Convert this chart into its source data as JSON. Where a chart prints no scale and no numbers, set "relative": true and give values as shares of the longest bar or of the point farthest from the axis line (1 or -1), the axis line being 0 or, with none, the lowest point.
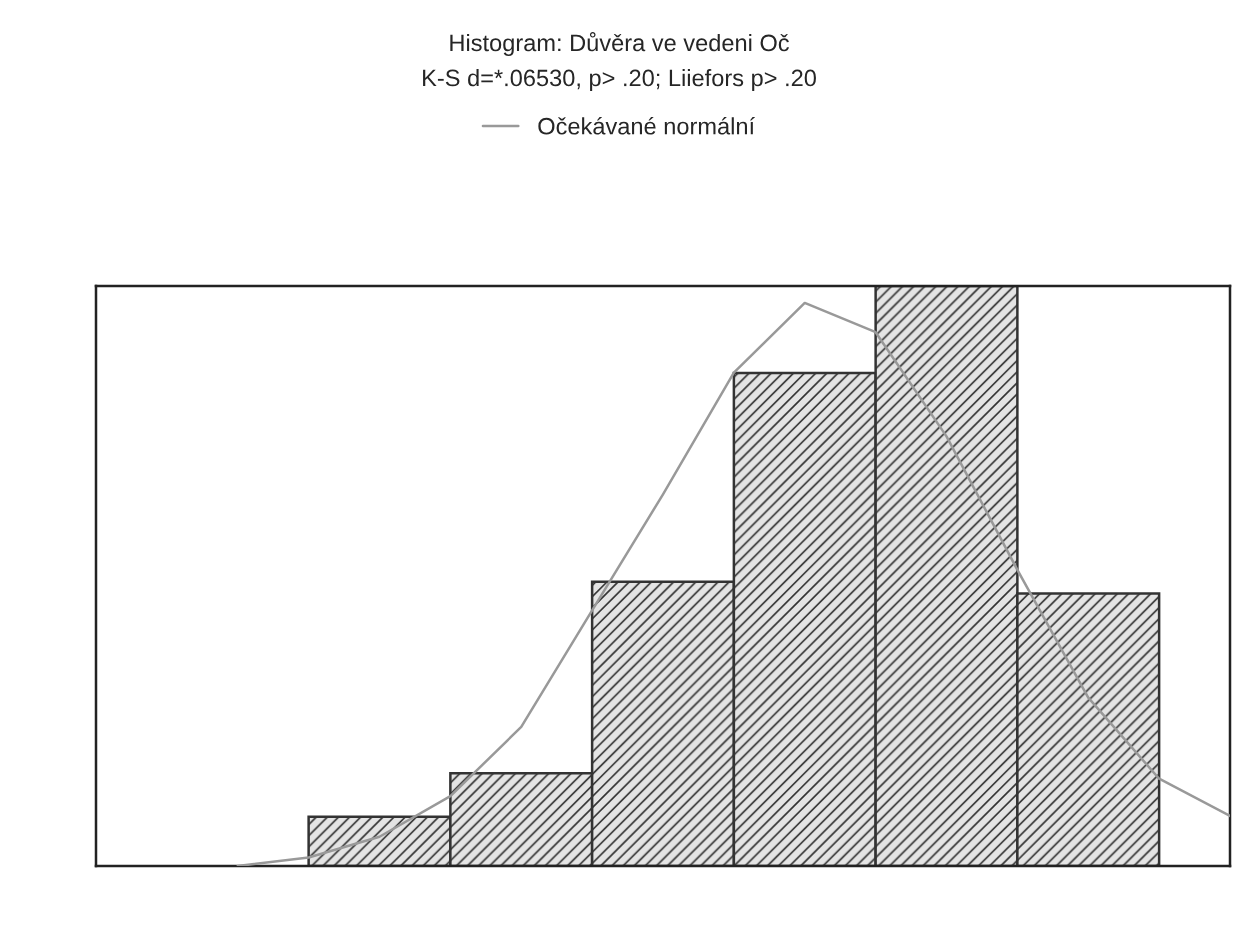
{
  "chart_data": [
    {
      "type": "bar",
      "title": "Histogram: Důvěra ve vedeni Oč",
      "subtitle": "K-S d=*.06530, p> .20; Liiefors p> .20",
      "categories": [
        null,
        null,
        null,
        null,
        null,
        null
      ],
      "relative": true,
      "color": "#333333",
      "values": [
        0.085,
        0.16,
        0.49,
        0.85,
        1,
        0.47
      ]
    },
    {
      "type": "line",
      "relative": true,
      "legend": "top",
      "categories": [
        null,
        null,
        null,
        null,
        null,
        null,
        null,
        null,
        null,
        null,
        null,
        null,
        null,
        null,
        null
      ],
      "series": [
        {
          "name": "Očekávané normální",
          "color": "#999999",
          "values": [
            0,
            0.015,
            0.052,
            0.124,
            0.247,
            0.454,
            0.66,
            0.876,
            1,
            0.948,
            0.763,
            0.526,
            0.299,
            0.155,
            0.089
          ]
        }
      ]
    }
  ]
}
